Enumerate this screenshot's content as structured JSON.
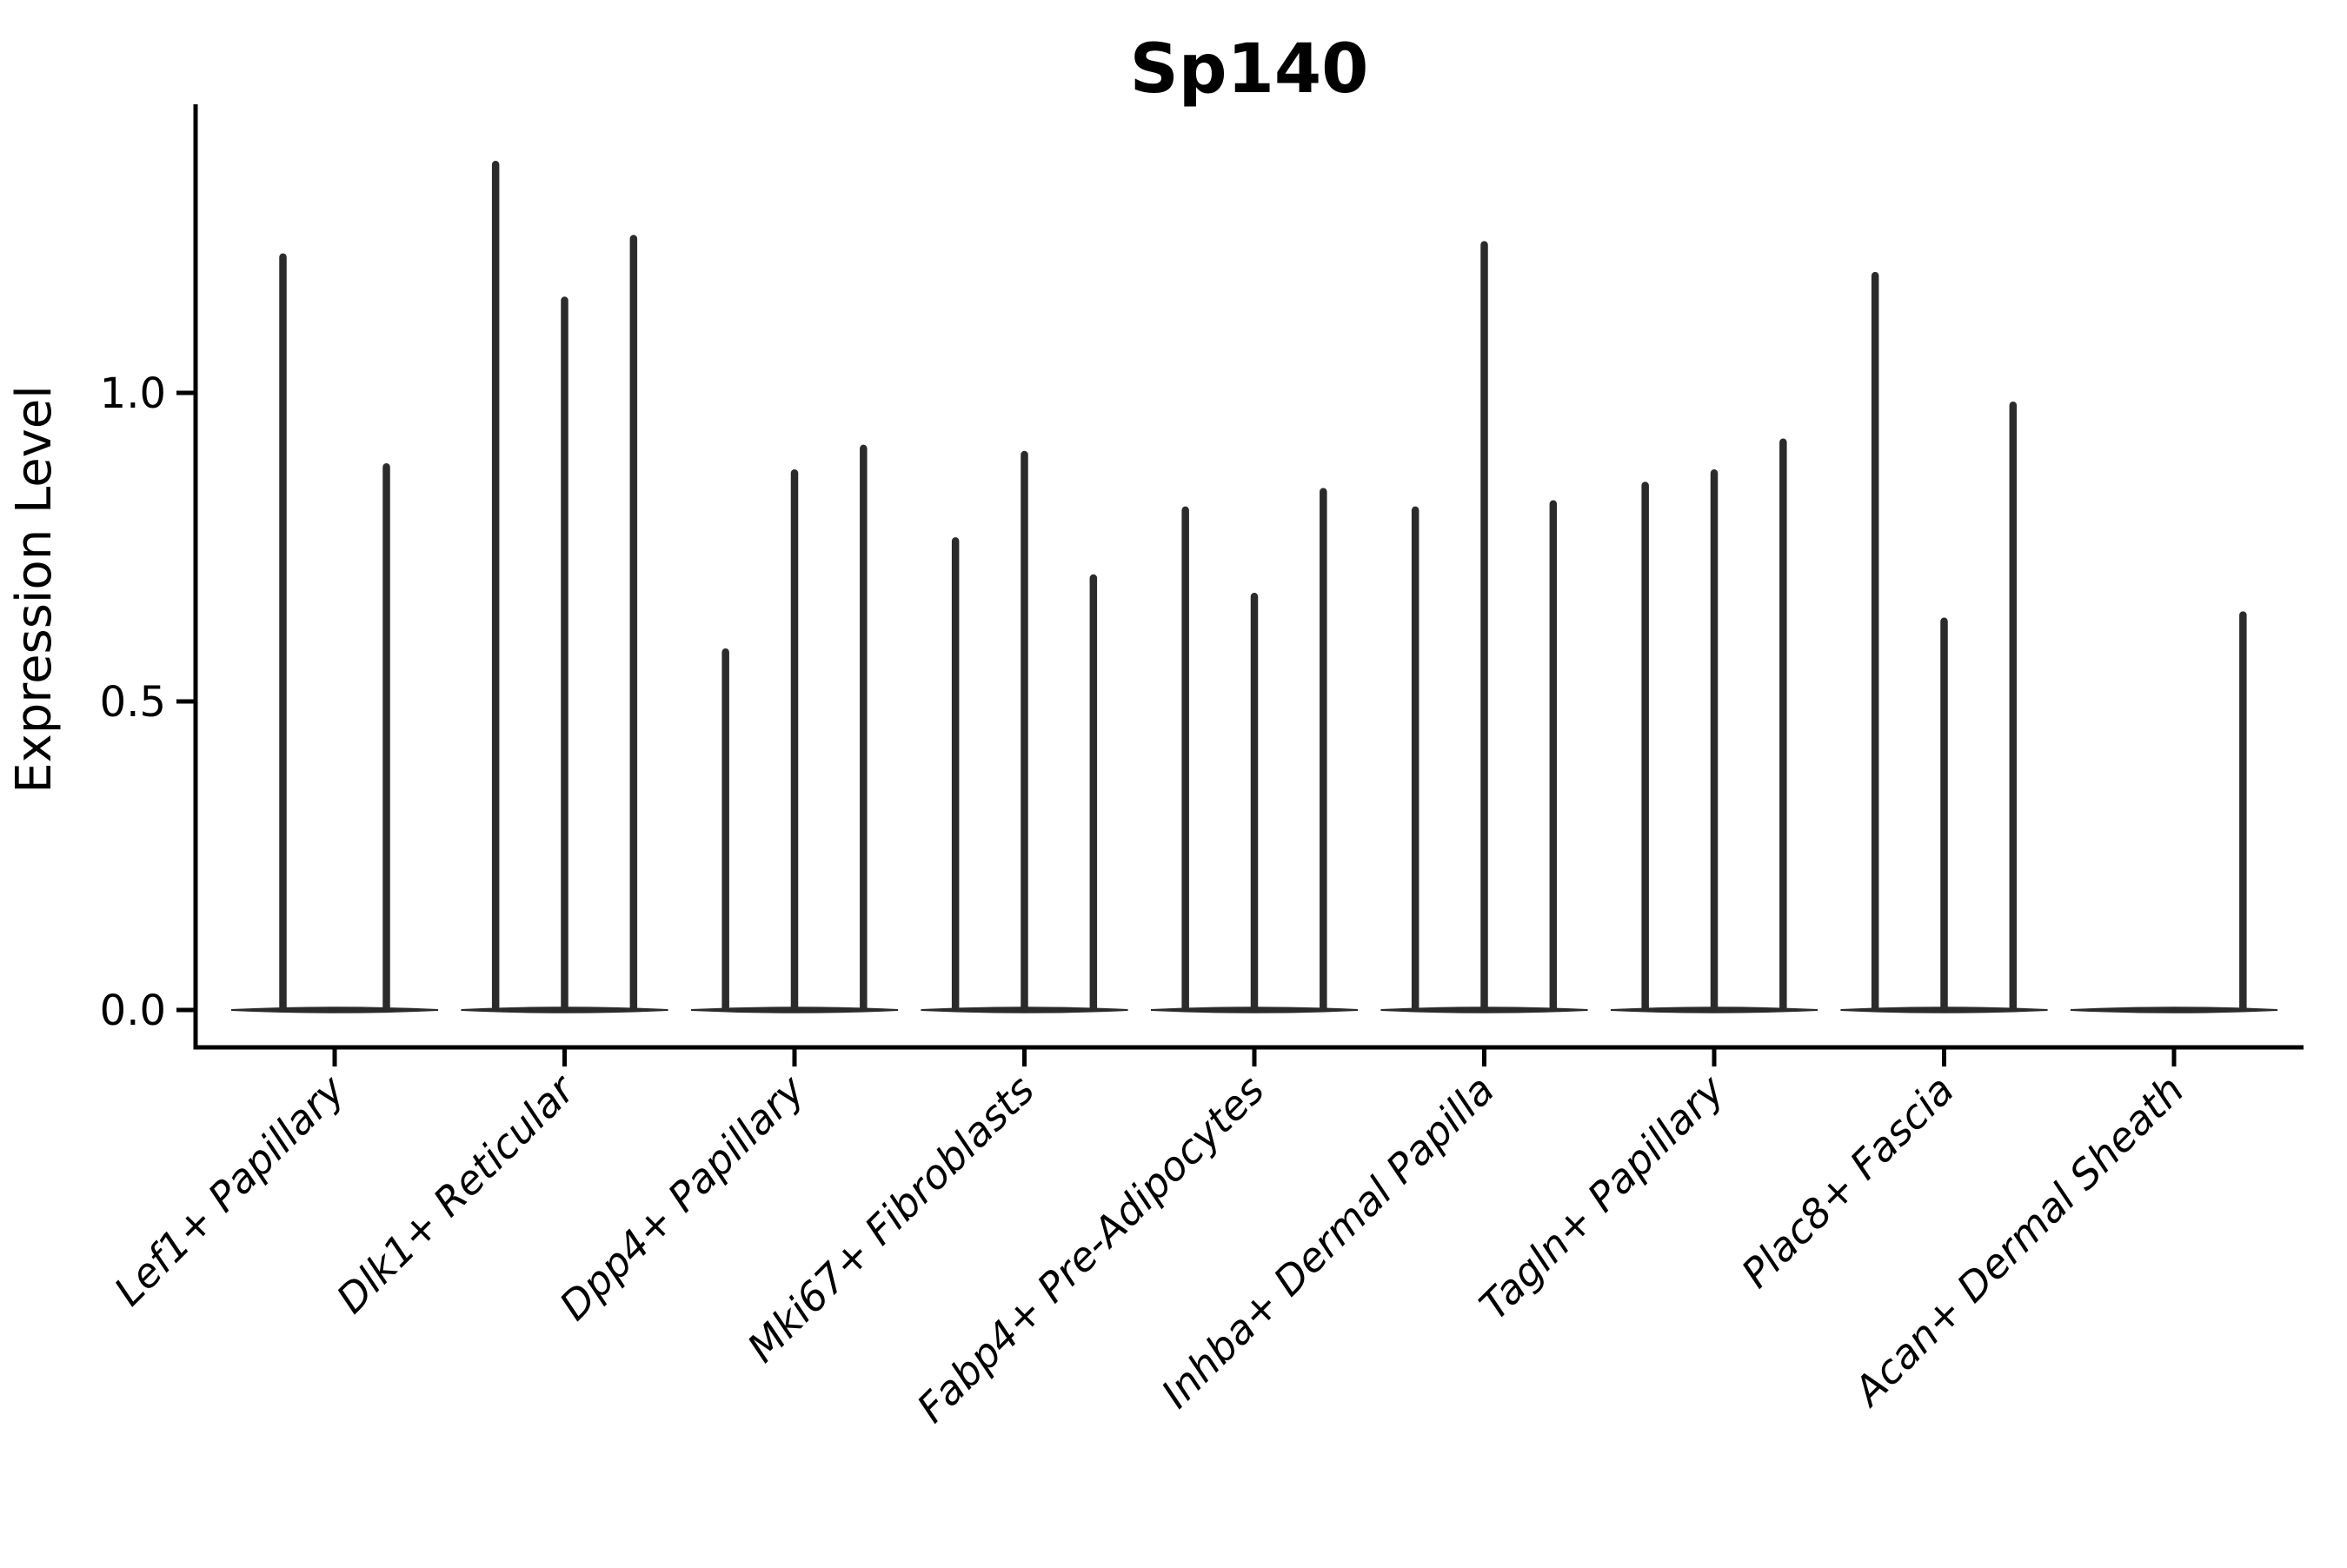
{
  "title": "Sp140",
  "chart_data": {
    "type": "violin",
    "title": "Sp140",
    "xlabel": "",
    "ylabel": "Expression Level",
    "ylim": [
      -0.06,
      1.43
    ],
    "yticks": [
      0.0,
      0.5,
      1.0
    ],
    "ytick_labels": [
      "0.0",
      "0.5",
      "1.0"
    ],
    "x_tick_rotation": 45,
    "grid": false,
    "legend": "none",
    "categories": [
      "Lef1+ Papillary",
      "Dlk1+ Reticular",
      "Dpp4+ Papillary",
      "Mki67+ Fibroblasts",
      "Fabp4+ Pre-Adipocytes",
      "Inhba+ Dermal Papilla",
      "Tagln+ Papillary",
      "Plac8+ Fascia",
      "Acan+ Dermal Sheath"
    ],
    "groups": [
      {
        "category": "Lef1+ Papillary",
        "max_expression": [
          1.22,
          0.88
        ]
      },
      {
        "category": "Dlk1+ Reticular",
        "max_expression": [
          1.37,
          1.15,
          1.25
        ]
      },
      {
        "category": "Dpp4+ Papillary",
        "max_expression": [
          0.58,
          0.87,
          0.91
        ]
      },
      {
        "category": "Mki67+ Fibroblasts",
        "max_expression": [
          0.76,
          0.9,
          0.7
        ]
      },
      {
        "category": "Fabp4+ Pre-Adipocytes",
        "max_expression": [
          0.81,
          0.67,
          0.84
        ]
      },
      {
        "category": "Inhba+ Dermal Papilla",
        "max_expression": [
          0.81,
          1.24,
          0.82
        ]
      },
      {
        "category": "Tagln+ Papillary",
        "max_expression": [
          0.85,
          0.87,
          0.92
        ]
      },
      {
        "category": "Plac8+ Fascia",
        "max_expression": [
          1.19,
          0.63,
          0.98
        ]
      },
      {
        "category": "Acan+ Dermal Sheath",
        "max_expression": [
          0.0,
          0.0,
          0.64
        ]
      }
    ],
    "violin_shape_note": "Each category shows narrow spike-like violins (most cells at 0 expression form a flat lens at y=0; rare expressing cells form a thin vertical spike up to max_expression).",
    "style": {
      "violin_color": "#2b2b2b",
      "axis_color": "#000000",
      "background": "#ffffff"
    }
  }
}
